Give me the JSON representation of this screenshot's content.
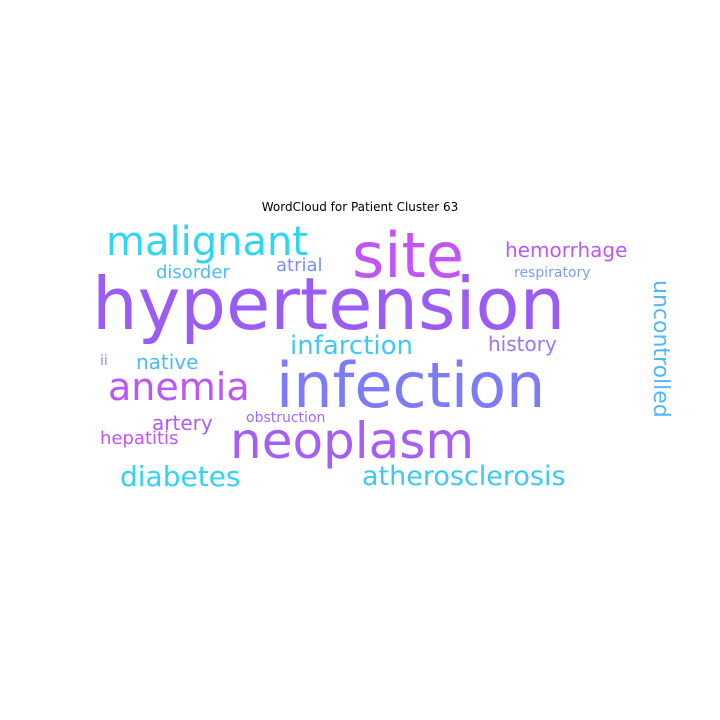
{
  "chart_data": {
    "type": "wordcloud",
    "title": "WordCloud for Patient Cluster 63",
    "words": [
      {
        "text": "hypertension",
        "weight": 1.0,
        "color": "#9b5cf6"
      },
      {
        "text": "infection",
        "weight": 0.9,
        "color": "#7d7cf8"
      },
      {
        "text": "neoplasm",
        "weight": 0.74,
        "color": "#a55ef6"
      },
      {
        "text": "site",
        "weight": 0.7,
        "color": "#c255f7"
      },
      {
        "text": "malignant",
        "weight": 0.52,
        "color": "#2fd6f4"
      },
      {
        "text": "anemia",
        "weight": 0.48,
        "color": "#bb57f6"
      },
      {
        "text": "diabetes",
        "weight": 0.34,
        "color": "#34d2f4"
      },
      {
        "text": "atherosclerosis",
        "weight": 0.34,
        "color": "#3dc8f5"
      },
      {
        "text": "uncontrolled",
        "weight": 0.3,
        "color": "#52b7f5"
      },
      {
        "text": "infarction",
        "weight": 0.3,
        "color": "#42c8f5"
      },
      {
        "text": "hemorrhage",
        "weight": 0.26,
        "color": "#b85af6"
      },
      {
        "text": "artery",
        "weight": 0.24,
        "color": "#b559f6"
      },
      {
        "text": "history",
        "weight": 0.24,
        "color": "#9f73f7"
      },
      {
        "text": "native",
        "weight": 0.24,
        "color": "#4cbcf5"
      },
      {
        "text": "hepatitis",
        "weight": 0.22,
        "color": "#c255f7"
      },
      {
        "text": "disorder",
        "weight": 0.22,
        "color": "#4bbdf5"
      },
      {
        "text": "atrial",
        "weight": 0.22,
        "color": "#7c8df7"
      },
      {
        "text": "respiratory",
        "weight": 0.18,
        "color": "#7a9ff7"
      },
      {
        "text": "obstruction",
        "weight": 0.17,
        "color": "#a06cf6"
      },
      {
        "text": "ii",
        "weight": 0.14,
        "color": "#8f86f7"
      }
    ]
  }
}
